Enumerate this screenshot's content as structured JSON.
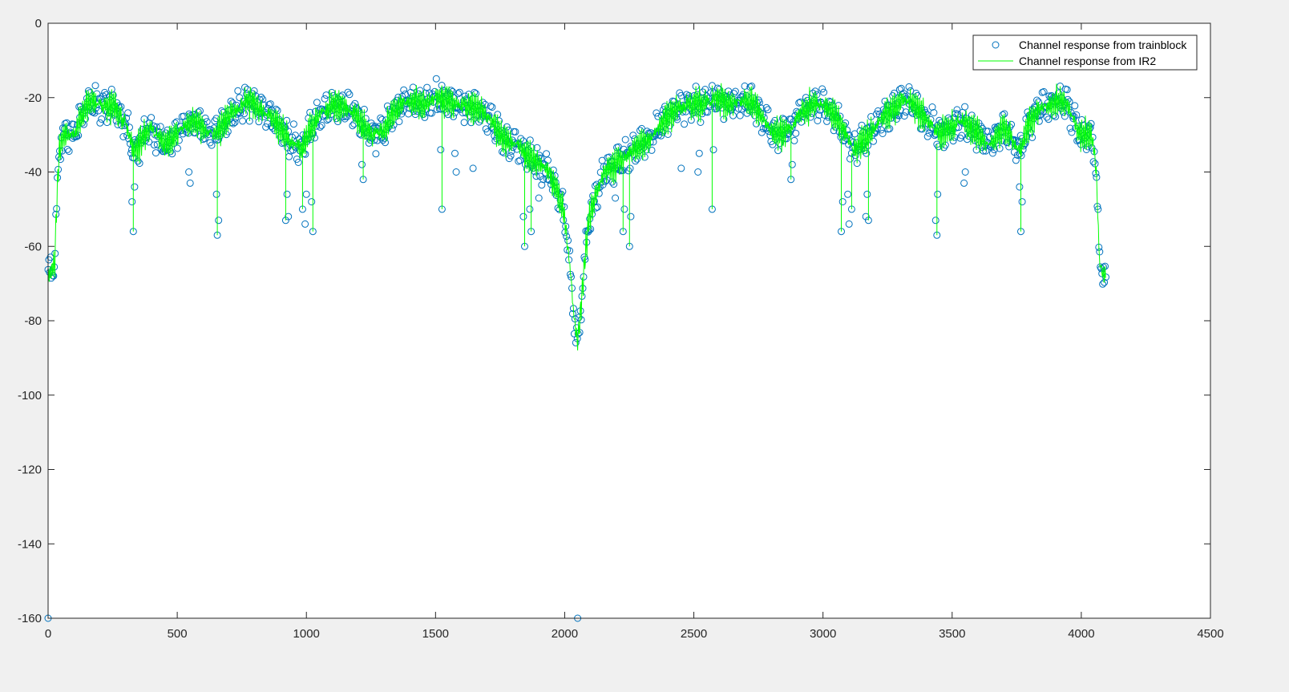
{
  "colors": {
    "figure_background": "#f0f0f0",
    "axes_background": "#ffffff",
    "axis_color": "#262626",
    "trainblock_marker": "#0072BD",
    "ir2_line": "#00FF00"
  },
  "chart_data": {
    "type": "line",
    "title": "",
    "xlabel": "",
    "ylabel": "",
    "xlim": [
      0,
      4500
    ],
    "ylim": [
      -160,
      0
    ],
    "xticks": [
      0,
      500,
      1000,
      1500,
      2000,
      2500,
      3000,
      3500,
      4000,
      4500
    ],
    "yticks": [
      0,
      -20,
      -40,
      -60,
      -80,
      -100,
      -120,
      -140,
      -160
    ],
    "grid": false,
    "legend_position": "top-right",
    "legend": [
      {
        "label": "Channel response from trainblock",
        "marker": "circle",
        "color": "#0072BD"
      },
      {
        "label": "Channel response from IR2",
        "marker": "line",
        "color": "#00FF00"
      }
    ],
    "n_points": 4096,
    "envelope_x": [
      0,
      10,
      25,
      32,
      38,
      45,
      60,
      100,
      150,
      170,
      260,
      300,
      330,
      345,
      370,
      400,
      430,
      450,
      480,
      520,
      560,
      600,
      640,
      680,
      720,
      760,
      790,
      820,
      860,
      900,
      940,
      980,
      1020,
      1060,
      1100,
      1140,
      1180,
      1220,
      1260,
      1300,
      1340,
      1380,
      1420,
      1460,
      1500,
      1540,
      1580,
      1620,
      1660,
      1700,
      1740,
      1780,
      1820,
      1860,
      1900,
      1940,
      1970,
      2000,
      2020,
      2035,
      2047
    ],
    "envelope_y": [
      -68,
      -67,
      -65,
      -52,
      -40,
      -34,
      -30,
      -30,
      -22,
      -21,
      -23,
      -27,
      -34,
      -34,
      -30,
      -28,
      -31,
      -33,
      -31,
      -28,
      -26,
      -28,
      -30,
      -27,
      -24,
      -21,
      -21,
      -23,
      -25,
      -28,
      -32,
      -34,
      -28,
      -24,
      -22,
      -22,
      -24,
      -28,
      -30,
      -29,
      -24,
      -21,
      -21,
      -22,
      -20,
      -21,
      -22,
      -22,
      -23,
      -25,
      -29,
      -32,
      -33,
      -36,
      -38,
      -40,
      -45,
      -52,
      -65,
      -78,
      -86
    ],
    "dips_trainblock": [
      [
        330,
        -56
      ],
      [
        325,
        -48
      ],
      [
        335,
        -44
      ],
      [
        550,
        -43
      ],
      [
        545,
        -40
      ],
      [
        655,
        -57
      ],
      [
        660,
        -53
      ],
      [
        652,
        -46
      ],
      [
        920,
        -53
      ],
      [
        930,
        -52
      ],
      [
        925,
        -46
      ],
      [
        985,
        -50
      ],
      [
        995,
        -54
      ],
      [
        1000,
        -46
      ],
      [
        1025,
        -56
      ],
      [
        1020,
        -48
      ],
      [
        1220,
        -42
      ],
      [
        1215,
        -38
      ],
      [
        1525,
        -50
      ],
      [
        1520,
        -34
      ],
      [
        1580,
        -40
      ],
      [
        1575,
        -35
      ],
      [
        1645,
        -39
      ],
      [
        1845,
        -60
      ],
      [
        1840,
        -52
      ],
      [
        1870,
        -56
      ],
      [
        1865,
        -50
      ],
      [
        1900,
        -47
      ],
      [
        2050,
        -160
      ]
    ],
    "dips_ir2": [
      [
        330,
        -56
      ],
      [
        655,
        -57
      ],
      [
        920,
        -53
      ],
      [
        985,
        -50
      ],
      [
        1025,
        -56
      ],
      [
        1220,
        -42
      ],
      [
        1525,
        -50
      ],
      [
        1845,
        -60
      ],
      [
        1870,
        -56
      ],
      [
        2050,
        -88
      ]
    ]
  }
}
